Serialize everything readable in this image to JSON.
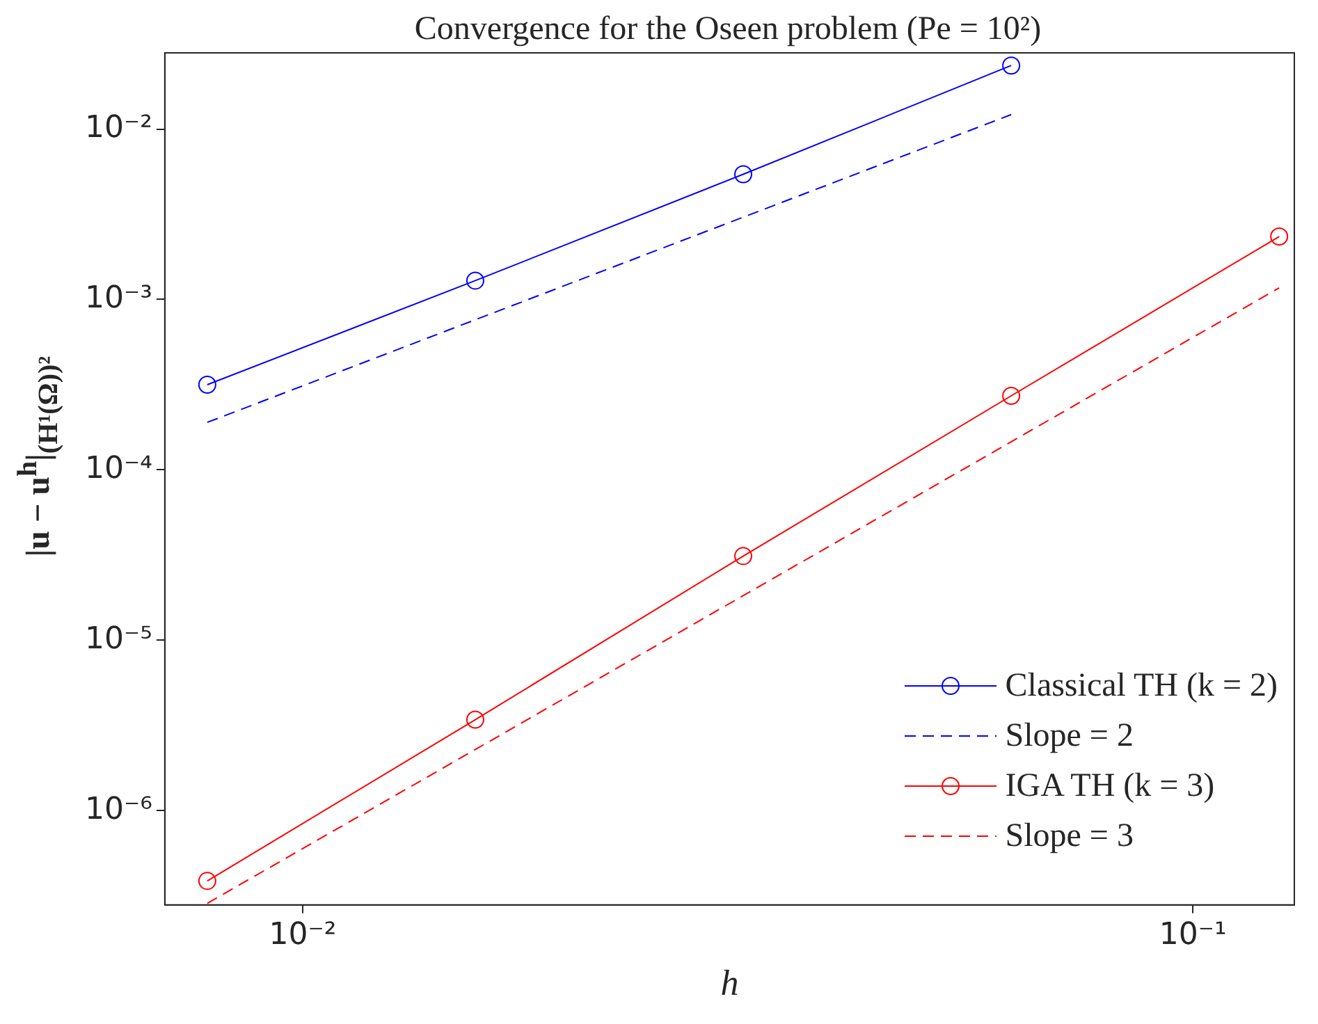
{
  "chart_data": {
    "type": "line",
    "title": "Convergence for the Oseen problem (Pe = 10²)",
    "xlabel": "h",
    "ylabel": "|u − u$^{h}$|$_{(H¹(Ω))²}$",
    "log": "xy",
    "grid": false,
    "legend": "bottom right",
    "xlim": [
      0.007,
      0.13
    ],
    "ylim": [
      2.8e-07,
      0.028
    ],
    "xticks": [
      {
        "value": 0.01,
        "label": "10⁻²"
      },
      {
        "value": 0.1,
        "label": "10⁻¹"
      }
    ],
    "yticks": [
      {
        "value": 1e-06,
        "label": "10⁻⁶"
      },
      {
        "value": 1e-05,
        "label": "10⁻⁵"
      },
      {
        "value": 0.0001,
        "label": "10⁻⁴"
      },
      {
        "value": 0.001,
        "label": "10⁻³"
      },
      {
        "value": 0.01,
        "label": "10⁻²"
      }
    ],
    "series": [
      {
        "name": "Classical TH (k = 2)",
        "color": "#0000ff",
        "marker": "circle",
        "line_style": "solid",
        "x": [
          0.0078125,
          0.015625,
          0.03125,
          0.0625
        ],
        "values": [
          0.000316,
          0.00129,
          0.00543,
          0.0236
        ]
      },
      {
        "name": "Slope = 2",
        "color": "#0000ff",
        "marker": "none",
        "line_style": "dashed",
        "x": [
          0.0078125,
          0.015625,
          0.03125,
          0.0625
        ],
        "values": [
          0.00019,
          0.00076,
          0.00304,
          0.01216
        ]
      },
      {
        "name": "IGA TH (k = 3)",
        "color": "#ff0000",
        "marker": "circle",
        "line_style": "solid",
        "x": [
          0.0078125,
          0.015625,
          0.03125,
          0.0625,
          0.125
        ],
        "values": [
          3.87e-07,
          3.42e-06,
          3.12e-05,
          0.000272,
          0.00234
        ]
      },
      {
        "name": "Slope = 3",
        "color": "#ff0000",
        "marker": "none",
        "line_style": "dashed",
        "x": [
          0.0078125,
          0.015625,
          0.03125,
          0.0625,
          0.125
        ],
        "values": [
          2.86e-07,
          2.285e-06,
          1.828e-05,
          0.00014625,
          0.00117
        ]
      }
    ]
  }
}
